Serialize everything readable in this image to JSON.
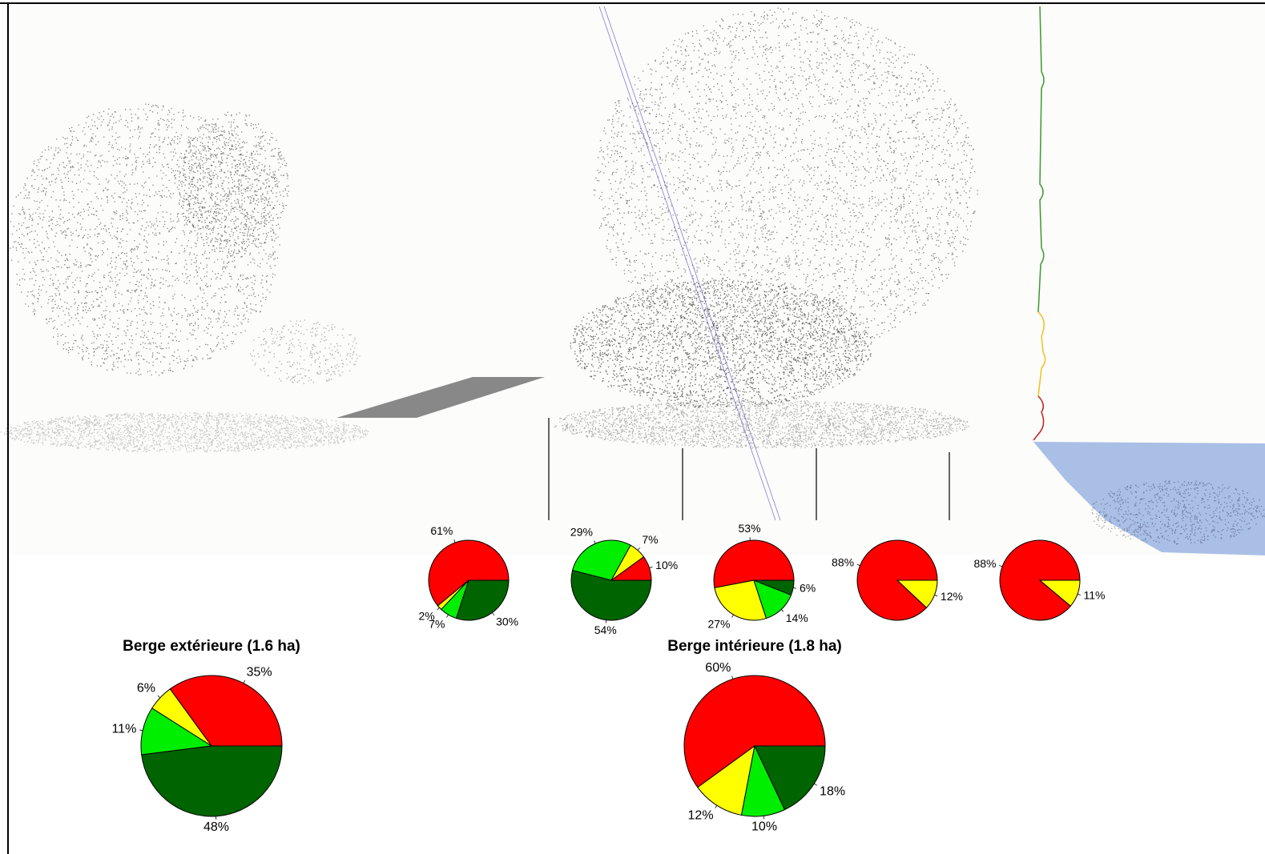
{
  "chart_data": [
    {
      "type": "pie",
      "values": [
        61,
        2,
        7,
        30
      ],
      "value_labels": [
        "61%",
        "2%",
        "7%",
        "30%"
      ],
      "colors": [
        "#ff0000",
        "#ffff00",
        "#00ee00",
        "#006400"
      ]
    },
    {
      "type": "pie",
      "values": [
        10,
        7,
        29,
        54
      ],
      "value_labels": [
        "10%",
        "7%",
        "29%",
        "54%"
      ],
      "colors": [
        "#ff0000",
        "#ffff00",
        "#00ee00",
        "#006400"
      ]
    },
    {
      "type": "pie",
      "values": [
        53,
        27,
        14,
        6
      ],
      "value_labels": [
        "53%",
        "27%",
        "14%",
        "6%"
      ],
      "colors": [
        "#ff0000",
        "#ffff00",
        "#00ee00",
        "#006400"
      ]
    },
    {
      "type": "pie",
      "values": [
        88,
        12
      ],
      "value_labels": [
        "88%",
        "12%"
      ],
      "colors": [
        "#ff0000",
        "#ffff00"
      ]
    },
    {
      "type": "pie",
      "values": [
        88,
        11
      ],
      "value_labels": [
        "88%",
        "11%"
      ],
      "colors": [
        "#ff0000",
        "#ffff00"
      ]
    },
    {
      "type": "pie",
      "title": "Berge extérieure (1.6 ha)",
      "values": [
        35,
        6,
        11,
        48
      ],
      "value_labels": [
        "35%",
        "6%",
        "11%",
        "48%"
      ],
      "colors": [
        "#ff0000",
        "#ffff00",
        "#00ee00",
        "#006400"
      ]
    },
    {
      "type": "pie",
      "title": "Berge intérieure (1.8 ha)",
      "values": [
        60,
        12,
        10,
        18
      ],
      "value_labels": [
        "60%",
        "12%",
        "10%",
        "18%"
      ],
      "colors": [
        "#ff0000",
        "#ffff00",
        "#00ee00",
        "#006400"
      ]
    }
  ]
}
